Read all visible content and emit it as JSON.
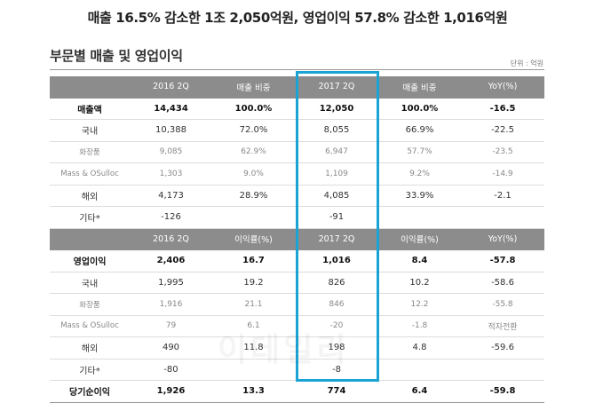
{
  "headline": "매출  16.5% 감소한 1조 2,050억원, 영업이익 57.8% 감소한 1,016억원",
  "section_title": "부문별  매출 및 영업이익",
  "unit": "단위 : 억원",
  "watermark": "이데일리",
  "highlight_color": "#1ba3d6",
  "header_color": "#8c8c8c",
  "revenue_header": [
    "",
    "2016 2Q",
    "매출 비중",
    "2017 2Q",
    "매출 비중",
    "YoY(%)"
  ],
  "revenue_rows": [
    {
      "cells": [
        "매출액",
        "14,434",
        "100.0%",
        "12,050",
        "100.0%",
        "-16.5"
      ],
      "style": "bold"
    },
    {
      "cells": [
        "국내",
        "10,388",
        "72.0%",
        "8,055",
        "66.9%",
        "-22.5"
      ],
      "style": "normal"
    },
    {
      "cells": [
        "화장품",
        "9,085",
        "62.9%",
        "6,947",
        "57.7%",
        "-23.5"
      ],
      "style": "sub"
    },
    {
      "cells": [
        "Mass & OSulloc",
        "1,303",
        "9.0%",
        "1,109",
        "9.2%",
        "-14.9"
      ],
      "style": "sub"
    },
    {
      "cells": [
        "해외",
        "4,173",
        "28.9%",
        "4,085",
        "33.9%",
        "-2.1"
      ],
      "style": "normal"
    },
    {
      "cells": [
        "기타*",
        "-126",
        "",
        "-91",
        "",
        ""
      ],
      "style": "normal"
    }
  ],
  "profit_header": [
    "",
    "2016 2Q",
    "이익률(%)",
    "2017 2Q",
    "이익률(%)",
    "YoY(%)"
  ],
  "profit_rows": [
    {
      "cells": [
        "영업이익",
        "2,406",
        "16.7",
        "1,016",
        "8.4",
        "-57.8"
      ],
      "style": "bold"
    },
    {
      "cells": [
        "국내",
        "1,995",
        "19.2",
        "826",
        "10.2",
        "-58.6"
      ],
      "style": "normal"
    },
    {
      "cells": [
        "화장품",
        "1,916",
        "21.1",
        "846",
        "12.2",
        "-55.8"
      ],
      "style": "sub"
    },
    {
      "cells": [
        "Mass & OSulloc",
        "79",
        "6.1",
        "-20",
        "-1.8",
        "적자전환"
      ],
      "style": "sub"
    },
    {
      "cells": [
        "해외",
        "490",
        "11.8",
        "198",
        "4.8",
        "-59.6"
      ],
      "style": "normal"
    },
    {
      "cells": [
        "기타*",
        "-80",
        "",
        "-8",
        "",
        ""
      ],
      "style": "normal"
    },
    {
      "cells": [
        "당기순이익",
        "1,926",
        "13.3",
        "774",
        "6.4",
        "-59.8"
      ],
      "style": "bold"
    }
  ]
}
